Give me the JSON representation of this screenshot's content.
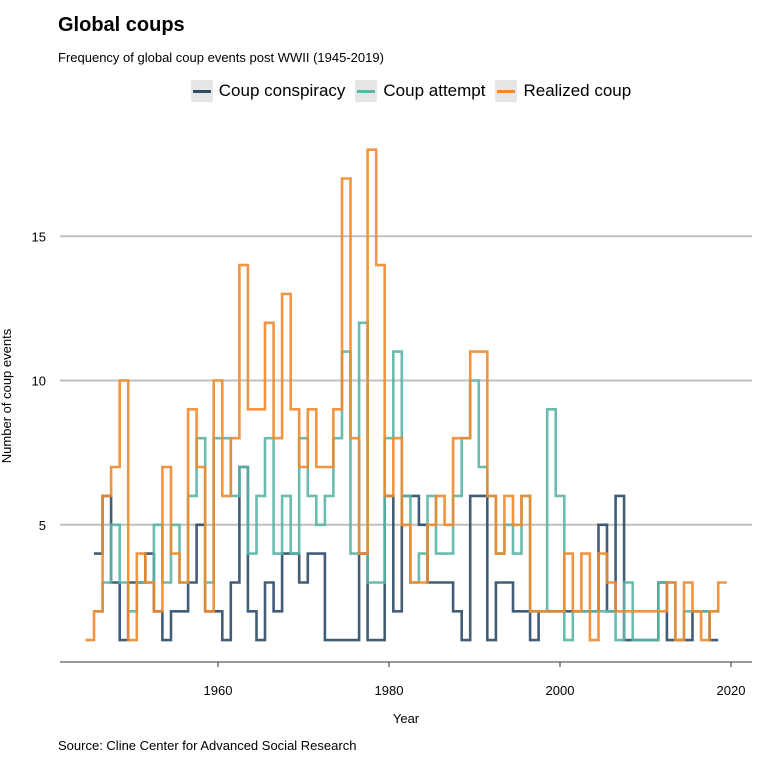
{
  "title": "Global coups",
  "subtitle": "Frequency of global coup events post WWII (1945-2019)",
  "caption": "Source: Cline Center for Advanced Social Research",
  "legend": [
    {
      "name": "Coup conspiracy",
      "color": "#2e4b67"
    },
    {
      "name": "Coup attempt",
      "color": "#5ab5a6"
    },
    {
      "name": "Realized coup",
      "color": "#f08a2c"
    }
  ],
  "chart_data": {
    "type": "line",
    "step": true,
    "xlabel": "Year",
    "ylabel": "Number of coup events",
    "xlim": [
      1940,
      2022
    ],
    "ylim": [
      0,
      18.5
    ],
    "xticks": [
      1960,
      1980,
      2000,
      2020
    ],
    "yticks": [
      5,
      10,
      15
    ],
    "grid": "horizontal",
    "legend_position": "top",
    "series": [
      {
        "name": "Coup conspiracy",
        "color": "#2e4b67",
        "x": [
          1946,
          1947,
          1948,
          1949,
          1950,
          1951,
          1952,
          1953,
          1954,
          1955,
          1956,
          1957,
          1958,
          1959,
          1960,
          1961,
          1962,
          1963,
          1964,
          1965,
          1966,
          1967,
          1968,
          1969,
          1970,
          1971,
          1972,
          1973,
          1974,
          1975,
          1976,
          1977,
          1978,
          1979,
          1980,
          1981,
          1982,
          1983,
          1984,
          1985,
          1986,
          1987,
          1988,
          1989,
          1990,
          1991,
          1992,
          1993,
          1994,
          1995,
          1996,
          1997,
          1998,
          1999,
          2000,
          2001,
          2002,
          2003,
          2004,
          2005,
          2006,
          2007,
          2008,
          2009,
          2010,
          2011,
          2012,
          2013,
          2014,
          2015,
          2016,
          2017,
          2018
        ],
        "values": [
          4,
          6,
          3,
          1,
          3,
          3,
          4,
          2,
          1,
          2,
          2,
          3,
          5,
          2,
          2,
          1,
          3,
          7,
          2,
          1,
          3,
          2,
          4,
          4,
          3,
          4,
          4,
          1,
          1,
          1,
          1,
          4,
          1,
          1,
          6,
          2,
          6,
          6,
          5,
          3,
          3,
          3,
          2,
          1,
          6,
          6,
          1,
          3,
          3,
          2,
          2,
          1,
          2,
          2,
          2,
          2,
          2,
          2,
          2,
          5,
          2,
          6,
          1,
          1,
          1,
          1,
          3,
          1,
          1,
          1,
          2,
          2,
          1
        ]
      },
      {
        "name": "Coup attempt",
        "color": "#5ab5a6",
        "x": [
          1946,
          1947,
          1948,
          1949,
          1950,
          1951,
          1952,
          1953,
          1954,
          1955,
          1956,
          1957,
          1958,
          1959,
          1960,
          1961,
          1962,
          1963,
          1964,
          1965,
          1966,
          1967,
          1968,
          1969,
          1970,
          1971,
          1972,
          1973,
          1974,
          1975,
          1976,
          1977,
          1978,
          1979,
          1980,
          1981,
          1982,
          1983,
          1984,
          1985,
          1986,
          1987,
          1988,
          1989,
          1990,
          1991,
          1992,
          1993,
          1994,
          1995,
          1996,
          1997,
          1998,
          1999,
          2000,
          2001,
          2002,
          2003,
          2004,
          2005,
          2006,
          2007,
          2008,
          2009,
          2010,
          2011,
          2012,
          2013,
          2014,
          2015,
          2016,
          2017,
          2018
        ],
        "values": [
          2,
          3,
          5,
          3,
          2,
          3,
          3,
          5,
          3,
          5,
          3,
          6,
          8,
          3,
          8,
          8,
          6,
          7,
          4,
          6,
          8,
          4,
          6,
          4,
          8,
          6,
          5,
          6,
          8,
          11,
          4,
          12,
          3,
          3,
          8,
          11,
          6,
          3,
          4,
          6,
          4,
          4,
          6,
          8,
          10,
          7,
          6,
          4,
          5,
          4,
          6,
          2,
          2,
          9,
          6,
          1,
          2,
          2,
          2,
          2,
          2,
          1,
          3,
          1,
          1,
          1,
          3,
          3,
          1,
          2,
          2,
          2,
          2
        ]
      },
      {
        "name": "Realized coup",
        "color": "#f08a2c",
        "x": [
          1945,
          1946,
          1947,
          1948,
          1949,
          1950,
          1951,
          1952,
          1953,
          1954,
          1955,
          1956,
          1957,
          1958,
          1959,
          1960,
          1961,
          1962,
          1963,
          1964,
          1965,
          1966,
          1967,
          1968,
          1969,
          1970,
          1971,
          1972,
          1973,
          1974,
          1975,
          1976,
          1977,
          1978,
          1979,
          1980,
          1981,
          1982,
          1983,
          1984,
          1985,
          1986,
          1987,
          1988,
          1989,
          1990,
          1991,
          1992,
          1993,
          1994,
          1995,
          1996,
          1997,
          1998,
          1999,
          2000,
          2001,
          2002,
          2003,
          2004,
          2005,
          2006,
          2007,
          2008,
          2009,
          2010,
          2011,
          2012,
          2013,
          2014,
          2015,
          2016,
          2017,
          2018,
          2019
        ],
        "values": [
          1,
          2,
          6,
          7,
          10,
          1,
          4,
          3,
          2,
          7,
          4,
          3,
          9,
          7,
          2,
          10,
          6,
          8,
          14,
          9,
          9,
          12,
          8,
          13,
          9,
          7,
          9,
          7,
          7,
          9,
          17,
          8,
          4,
          18,
          14,
          6,
          8,
          5,
          3,
          3,
          5,
          6,
          5,
          8,
          8,
          11,
          11,
          6,
          4,
          6,
          5,
          6,
          2,
          2,
          2,
          2,
          4,
          2,
          4,
          1,
          4,
          3,
          2,
          2,
          2,
          2,
          2,
          2,
          3,
          1,
          3,
          2,
          1,
          2,
          3
        ]
      }
    ]
  }
}
